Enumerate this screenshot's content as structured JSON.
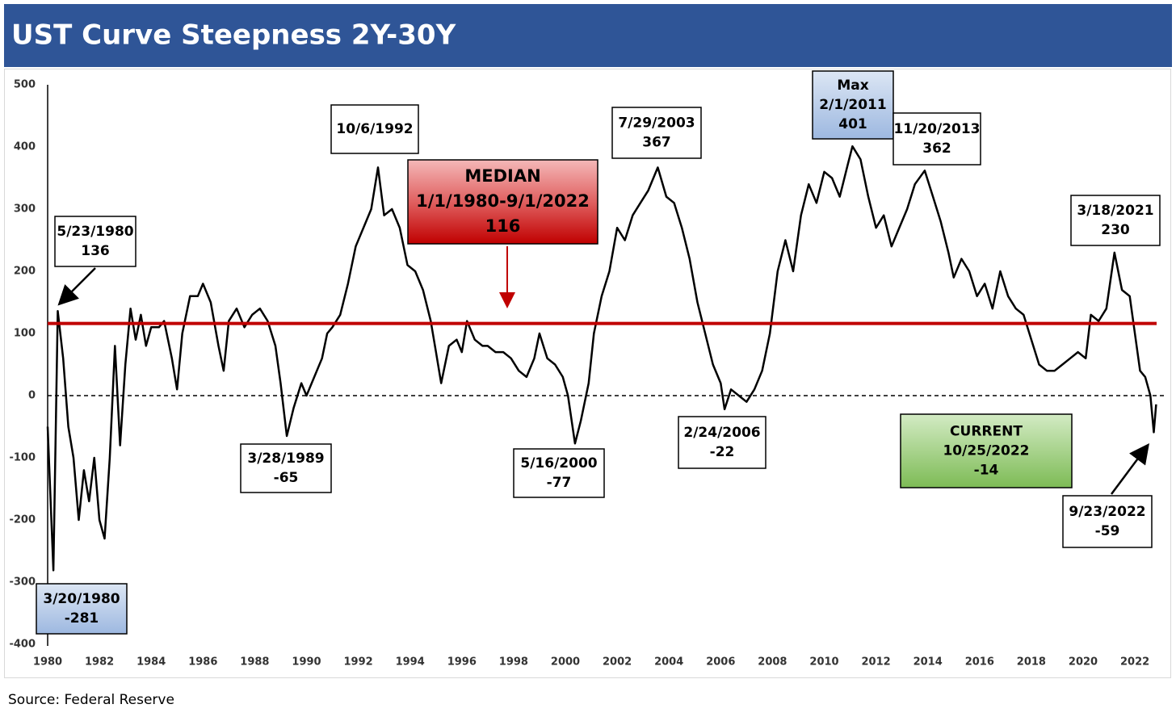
{
  "chart_data": {
    "type": "line",
    "title": "UST Curve Steepness 2Y-30Y",
    "source": "Source: Federal Reserve",
    "color": "#000000",
    "xlim": [
      1980,
      2023.2
    ],
    "xticks": [
      1980,
      1982,
      1984,
      1986,
      1988,
      1990,
      1992,
      1994,
      1996,
      1998,
      2000,
      2002,
      2004,
      2006,
      2008,
      2010,
      2012,
      2014,
      2016,
      2018,
      2020,
      2022
    ],
    "ylim": [
      -400,
      500
    ],
    "yticks": [
      -400,
      -300,
      -200,
      -100,
      0,
      100,
      200,
      300,
      400,
      500
    ],
    "x": [
      1980.0,
      1980.22,
      1980.39,
      1980.6,
      1980.8,
      1981.0,
      1981.2,
      1981.4,
      1981.6,
      1981.8,
      1982.0,
      1982.2,
      1982.4,
      1982.6,
      1982.8,
      1983.0,
      1983.2,
      1983.4,
      1983.6,
      1983.8,
      1984.0,
      1984.3,
      1984.5,
      1984.8,
      1985.0,
      1985.2,
      1985.5,
      1985.8,
      1986.0,
      1986.3,
      1986.6,
      1986.8,
      1987.0,
      1987.3,
      1987.6,
      1987.9,
      1988.2,
      1988.5,
      1988.8,
      1989.0,
      1989.24,
      1989.5,
      1989.8,
      1990.0,
      1990.3,
      1990.6,
      1990.8,
      1991.0,
      1991.3,
      1991.6,
      1991.9,
      1992.2,
      1992.5,
      1992.76,
      1993.0,
      1993.3,
      1993.6,
      1993.9,
      1994.2,
      1994.5,
      1994.8,
      1995.0,
      1995.2,
      1995.5,
      1995.8,
      1996.0,
      1996.2,
      1996.5,
      1996.8,
      1997.0,
      1997.3,
      1997.6,
      1997.9,
      1998.2,
      1998.5,
      1998.8,
      1999.0,
      1999.3,
      1999.6,
      1999.9,
      2000.1,
      2000.37,
      2000.6,
      2000.9,
      2001.1,
      2001.4,
      2001.7,
      2002.0,
      2002.3,
      2002.6,
      2002.9,
      2003.2,
      2003.57,
      2003.9,
      2004.2,
      2004.5,
      2004.8,
      2005.1,
      2005.4,
      2005.7,
      2006.0,
      2006.15,
      2006.4,
      2006.7,
      2007.0,
      2007.3,
      2007.6,
      2007.9,
      2008.2,
      2008.5,
      2008.8,
      2009.1,
      2009.4,
      2009.7,
      2010.0,
      2010.3,
      2010.6,
      2010.9,
      2011.09,
      2011.4,
      2011.7,
      2012.0,
      2012.3,
      2012.6,
      2012.9,
      2013.2,
      2013.5,
      2013.88,
      2014.2,
      2014.5,
      2014.8,
      2015.0,
      2015.3,
      2015.6,
      2015.9,
      2016.2,
      2016.5,
      2016.8,
      2017.1,
      2017.4,
      2017.7,
      2018.0,
      2018.3,
      2018.6,
      2018.9,
      2019.2,
      2019.5,
      2019.8,
      2020.1,
      2020.3,
      2020.6,
      2020.9,
      2021.21,
      2021.5,
      2021.8,
      2022.0,
      2022.2,
      2022.4,
      2022.6,
      2022.73,
      2022.82
    ],
    "values": [
      -50,
      -281,
      136,
      60,
      -50,
      -100,
      -200,
      -120,
      -170,
      -100,
      -200,
      -230,
      -100,
      80,
      -80,
      50,
      140,
      90,
      130,
      80,
      110,
      110,
      120,
      60,
      10,
      100,
      160,
      160,
      180,
      150,
      80,
      40,
      120,
      140,
      110,
      130,
      140,
      120,
      80,
      20,
      -65,
      -20,
      20,
      0,
      30,
      60,
      100,
      110,
      130,
      180,
      240,
      270,
      300,
      367,
      290,
      300,
      270,
      210,
      200,
      170,
      120,
      70,
      20,
      80,
      90,
      70,
      120,
      90,
      80,
      80,
      70,
      70,
      60,
      40,
      30,
      60,
      100,
      60,
      50,
      30,
      0,
      -77,
      -40,
      20,
      100,
      160,
      200,
      270,
      250,
      290,
      310,
      330,
      367,
      320,
      310,
      270,
      220,
      150,
      100,
      50,
      20,
      -22,
      10,
      0,
      -10,
      10,
      40,
      100,
      200,
      250,
      200,
      290,
      340,
      310,
      360,
      350,
      320,
      370,
      401,
      380,
      320,
      270,
      290,
      240,
      270,
      300,
      340,
      362,
      320,
      280,
      230,
      190,
      220,
      200,
      160,
      180,
      140,
      200,
      160,
      140,
      130,
      90,
      50,
      40,
      40,
      50,
      60,
      70,
      60,
      130,
      120,
      140,
      230,
      170,
      160,
      100,
      40,
      30,
      0,
      -59,
      -14
    ],
    "median": {
      "title": "MEDIAN",
      "label": "1/1/1980-9/1/2022",
      "value": 116,
      "color": "#c00000"
    },
    "annotations": [
      {
        "label": "3/20/1980",
        "value": -281
      },
      {
        "label": "5/23/1980",
        "value": 136
      },
      {
        "label": "3/28/1989",
        "value": -65
      },
      {
        "label": "10/6/1992"
      },
      {
        "label": "7/29/2003",
        "value": 367
      },
      {
        "label": "2/24/2006",
        "value": -22
      },
      {
        "label": "5/16/2000",
        "value": -77
      },
      {
        "title": "Max",
        "label": "2/1/2011",
        "value": 401
      },
      {
        "label": "11/20/2013",
        "value": 362
      },
      {
        "label": "3/18/2021",
        "value": 230
      },
      {
        "label": "9/23/2022",
        "value": -59
      },
      {
        "title": "CURRENT",
        "label": "10/25/2022",
        "value": -14
      }
    ]
  }
}
